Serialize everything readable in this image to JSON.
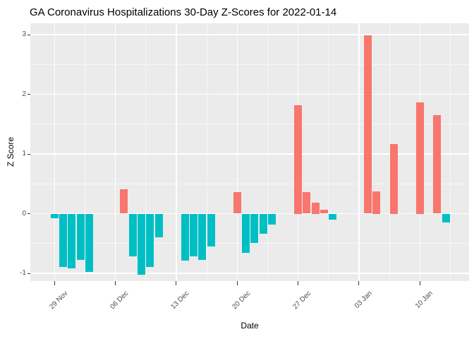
{
  "chart_data": {
    "type": "bar",
    "title": "GA Coronavirus Hospitalizations 30-Day Z-Scores for 2022-01-14",
    "xlabel": "Date",
    "ylabel": "Z Score",
    "grid": true,
    "legend": "none",
    "colors": {
      "positive_bar": "#F8766D",
      "negative_bar": "#00BFC4",
      "panel_background": "#EBEBEB",
      "gridline": "#FFFFFF",
      "axis_text": "#4D4D4D",
      "title_text": "#000000",
      "tick_mark": "#333333"
    },
    "y_axis": {
      "ticks": [
        -1,
        0,
        1,
        2,
        3
      ],
      "minor_ticks": [
        -0.5,
        0.5,
        1.5,
        2.5
      ],
      "range": [
        -1.13,
        3.19
      ]
    },
    "x_axis": {
      "tick_labels": [
        "29 Nov",
        "06 Dec",
        "13 Dec",
        "20 Dec",
        "27 Dec",
        "03 Jan",
        "10 Jan"
      ],
      "tick_day_offsets": [
        0,
        7,
        14,
        21,
        28,
        35,
        42
      ],
      "minor_day_offsets": [
        3.5,
        10.5,
        17.5,
        24.5,
        31.5,
        38.5,
        45.5
      ],
      "range_days": [
        -2.78,
        47.66
      ]
    },
    "bars": [
      {
        "date": "2021-11-29",
        "day": 0,
        "value": -0.08
      },
      {
        "date": "2021-11-30",
        "day": 1,
        "value": -0.89
      },
      {
        "date": "2021-12-01",
        "day": 2,
        "value": -0.92
      },
      {
        "date": "2021-12-02",
        "day": 3,
        "value": -0.77
      },
      {
        "date": "2021-12-03",
        "day": 4,
        "value": -0.97
      },
      {
        "date": "2021-12-07",
        "day": 8,
        "value": 0.41
      },
      {
        "date": "2021-12-08",
        "day": 9,
        "value": -0.71
      },
      {
        "date": "2021-12-09",
        "day": 10,
        "value": -1.02
      },
      {
        "date": "2021-12-10",
        "day": 11,
        "value": -0.89
      },
      {
        "date": "2021-12-11",
        "day": 12,
        "value": -0.4
      },
      {
        "date": "2021-12-14",
        "day": 15,
        "value": -0.79
      },
      {
        "date": "2021-12-15",
        "day": 16,
        "value": -0.72
      },
      {
        "date": "2021-12-16",
        "day": 17,
        "value": -0.78
      },
      {
        "date": "2021-12-17",
        "day": 18,
        "value": -0.55
      },
      {
        "date": "2021-12-20",
        "day": 21,
        "value": 0.36
      },
      {
        "date": "2021-12-21",
        "day": 22,
        "value": -0.66
      },
      {
        "date": "2021-12-22",
        "day": 23,
        "value": -0.49
      },
      {
        "date": "2021-12-23",
        "day": 24,
        "value": -0.34
      },
      {
        "date": "2021-12-24",
        "day": 25,
        "value": -0.18
      },
      {
        "date": "2021-12-27",
        "day": 28,
        "value": 1.82
      },
      {
        "date": "2021-12-28",
        "day": 29,
        "value": 0.36
      },
      {
        "date": "2021-12-29",
        "day": 30,
        "value": 0.19
      },
      {
        "date": "2021-12-30",
        "day": 31,
        "value": 0.07
      },
      {
        "date": "2021-12-31",
        "day": 32,
        "value": -0.1
      },
      {
        "date": "2022-01-04",
        "day": 36,
        "value": 2.99
      },
      {
        "date": "2022-01-05",
        "day": 37,
        "value": 0.37
      },
      {
        "date": "2022-01-07",
        "day": 39,
        "value": 1.17
      },
      {
        "date": "2022-01-10",
        "day": 42,
        "value": 1.86
      },
      {
        "date": "2022-01-12",
        "day": 44,
        "value": 1.65
      },
      {
        "date": "2022-01-13",
        "day": 45,
        "value": -0.15
      }
    ]
  }
}
